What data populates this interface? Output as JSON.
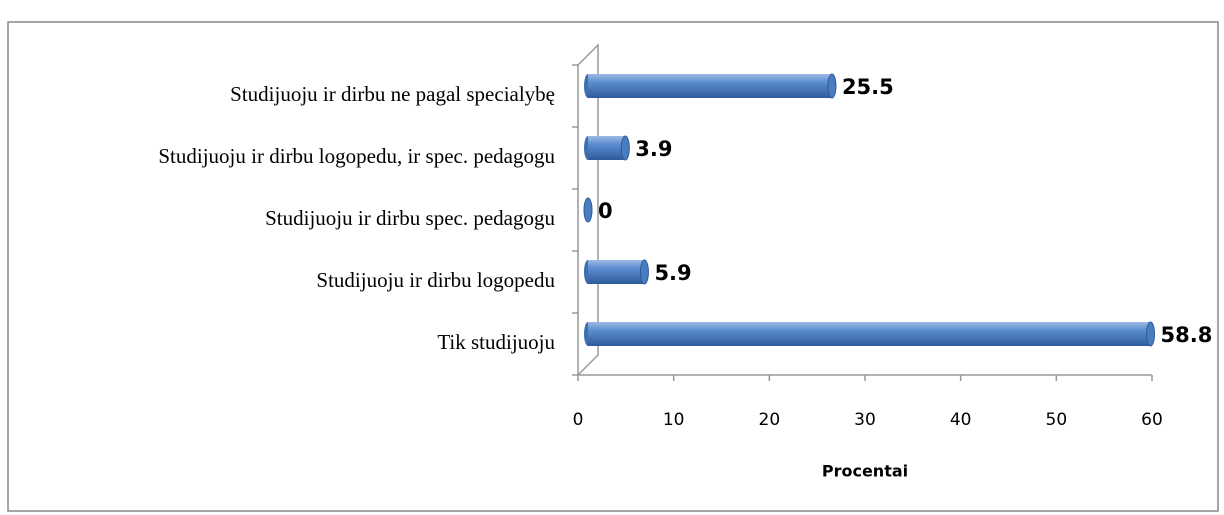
{
  "chart_data": {
    "type": "bar",
    "orientation": "horizontal",
    "categories": [
      "Studijuoju ir dirbu ne pagal specialybę",
      "Studijuoju ir dirbu logopedu, ir spec. pedagogu",
      "Studijuoju ir dirbu spec. pedagogu",
      "Studijuoju ir dirbu logopedu",
      "Tik studijuoju"
    ],
    "values": [
      25.5,
      3.9,
      0,
      5.9,
      58.8
    ],
    "color": "#4f81bd",
    "xlabel": "Procentai",
    "xlim": [
      0,
      60
    ],
    "xticks": [
      0,
      10,
      20,
      30,
      40,
      50,
      60
    ],
    "grid": false
  }
}
